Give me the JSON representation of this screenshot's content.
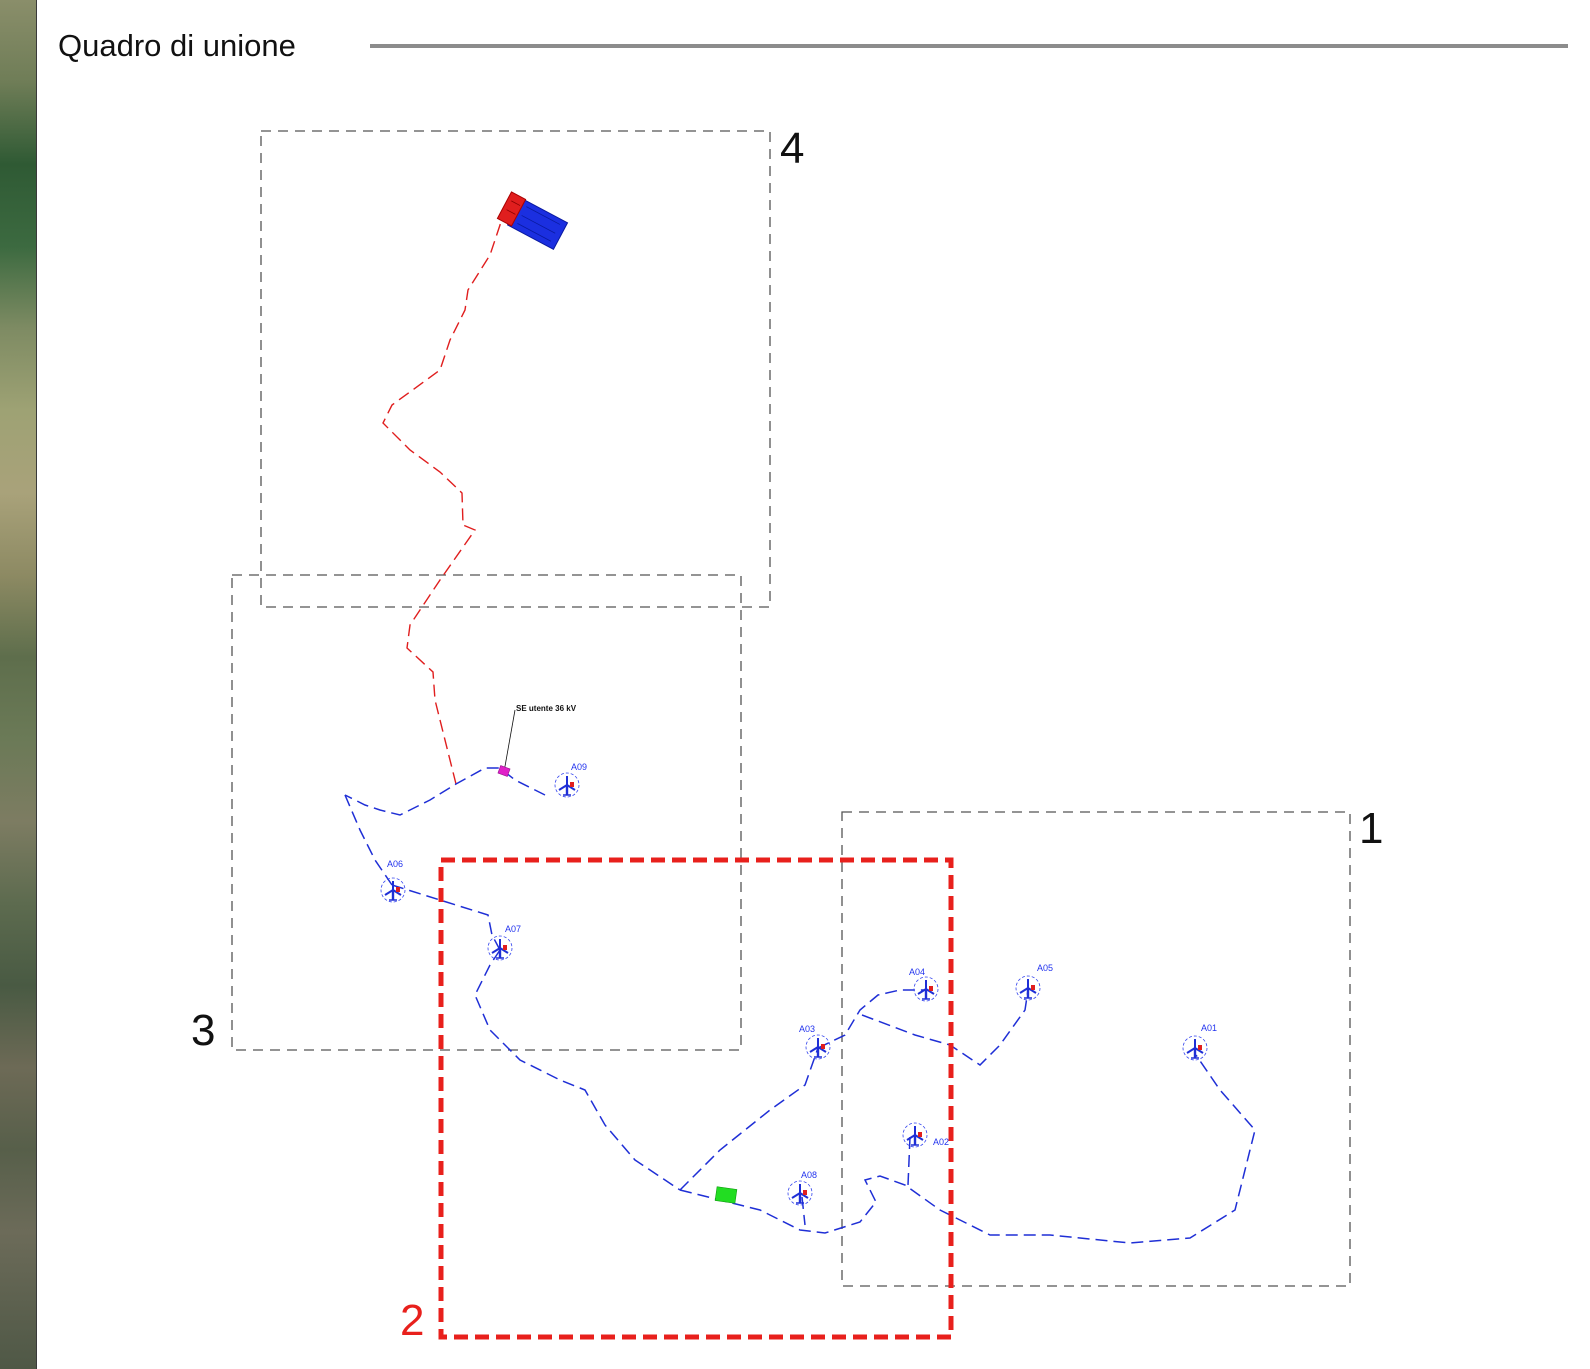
{
  "header": {
    "title": "Quadro di unione"
  },
  "sheets": [
    {
      "id": "1",
      "label": "1",
      "highlighted": false
    },
    {
      "id": "2",
      "label": "2",
      "highlighted": true
    },
    {
      "id": "3",
      "label": "3",
      "highlighted": false
    },
    {
      "id": "4",
      "label": "4",
      "highlighted": false
    }
  ],
  "turbines": [
    {
      "id": "A01",
      "label": "A01"
    },
    {
      "id": "A02",
      "label": "A02"
    },
    {
      "id": "A03",
      "label": "A03"
    },
    {
      "id": "A04",
      "label": "A04"
    },
    {
      "id": "A05",
      "label": "A05"
    },
    {
      "id": "A06",
      "label": "A06"
    },
    {
      "id": "A07",
      "label": "A07"
    },
    {
      "id": "A08",
      "label": "A08"
    },
    {
      "id": "A09",
      "label": "A09"
    }
  ],
  "substation": {
    "label": "SE utente 36 kV"
  },
  "colors": {
    "sheet_border": "#555555",
    "highlight": "#e8201c",
    "cable_mt": "#1f2fd6",
    "cable_at": "#e01e1e",
    "substation_marker": "#e020c8",
    "storage": "#22dd22",
    "station_blue": "#1b2fe0",
    "station_red": "#e01e1e"
  }
}
